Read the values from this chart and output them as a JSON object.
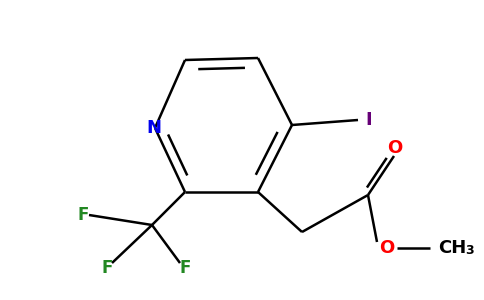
{
  "bg_color": "#ffffff",
  "atom_colors": {
    "N": "#0000ee",
    "O": "#ff0000",
    "F": "#228822",
    "I": "#660077",
    "C": "#000000"
  },
  "bond_color": "#000000",
  "bond_lw": 1.8,
  "font_size": 13,
  "font_size_sub": 9,
  "figsize": [
    4.84,
    3.0
  ],
  "dpi": 100
}
